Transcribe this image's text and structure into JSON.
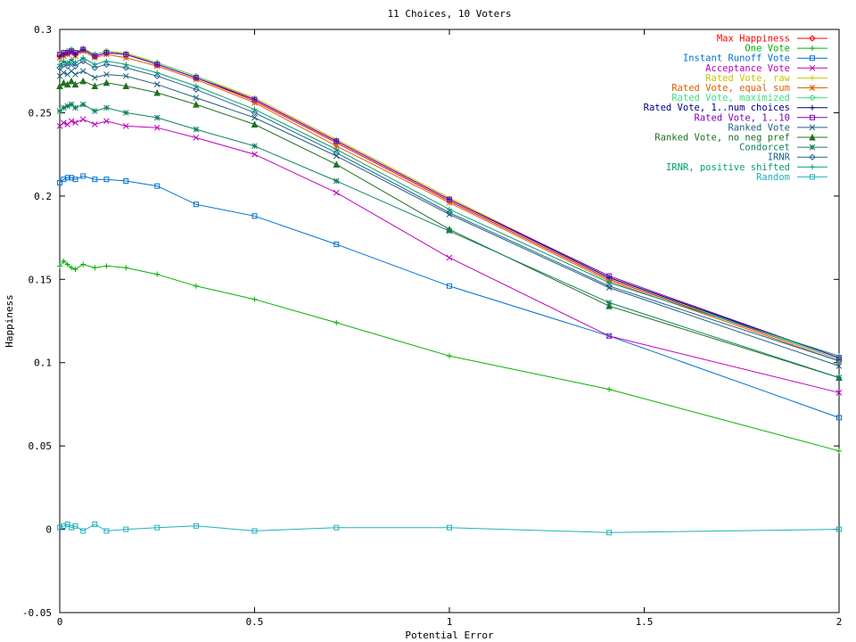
{
  "chart_data": {
    "type": "line",
    "title": "11 Choices, 10 Voters",
    "xlabel": "Potential Error",
    "ylabel": "Happiness",
    "xlim": [
      0,
      2
    ],
    "ylim": [
      -0.05,
      0.3
    ],
    "xticks": [
      0,
      0.5,
      1,
      1.5,
      2
    ],
    "xtick_labels": [
      "0",
      "0.5",
      "1",
      "1.5",
      "2"
    ],
    "yticks": [
      -0.05,
      0,
      0.05,
      0.1,
      0.15,
      0.2,
      0.25,
      0.3
    ],
    "ytick_labels": [
      "-0.05",
      "0",
      "0.05",
      "0.1",
      "0.15",
      "0.2",
      "0.25",
      "0.3"
    ],
    "grid": false,
    "legend_position": "top-right",
    "x": [
      0,
      0.01,
      0.02,
      0.03,
      0.04,
      0.06,
      0.09,
      0.12,
      0.17,
      0.25,
      0.35,
      0.5,
      0.71,
      1.0,
      1.41,
      2.0
    ],
    "series": [
      {
        "name": "Max Happiness",
        "color": "#ff0000",
        "marker": "diamond",
        "values": [
          0.284,
          0.285,
          0.286,
          0.287,
          0.285,
          0.288,
          0.284,
          0.286,
          0.285,
          0.279,
          0.271,
          0.257,
          0.232,
          0.197,
          0.15,
          0.102
        ]
      },
      {
        "name": "One Vote",
        "color": "#00b000",
        "marker": "plus",
        "values": [
          0.158,
          0.161,
          0.159,
          0.157,
          0.156,
          0.159,
          0.157,
          0.158,
          0.157,
          0.153,
          0.146,
          0.138,
          0.124,
          0.104,
          0.084,
          0.047
        ]
      },
      {
        "name": "Instant Runoff Vote",
        "color": "#0070d0",
        "marker": "square",
        "values": [
          0.208,
          0.21,
          0.211,
          0.211,
          0.21,
          0.212,
          0.21,
          0.21,
          0.209,
          0.206,
          0.195,
          0.188,
          0.171,
          0.146,
          0.116,
          0.067
        ]
      },
      {
        "name": "Acceptance Vote",
        "color": "#c000c0",
        "marker": "x",
        "values": [
          0.242,
          0.244,
          0.243,
          0.245,
          0.244,
          0.246,
          0.243,
          0.245,
          0.242,
          0.241,
          0.235,
          0.225,
          0.202,
          0.163,
          0.116,
          0.082
        ]
      },
      {
        "name": "Rated Vote, raw",
        "color": "#c8c800",
        "marker": "plus",
        "values": [
          0.285,
          0.286,
          0.286,
          0.288,
          0.286,
          0.289,
          0.285,
          0.287,
          0.286,
          0.28,
          0.272,
          0.259,
          0.234,
          0.199,
          0.151,
          0.103
        ]
      },
      {
        "name": "Rated Vote, equal sum",
        "color": "#e06000",
        "marker": "star",
        "values": [
          0.283,
          0.284,
          0.285,
          0.286,
          0.284,
          0.287,
          0.283,
          0.285,
          0.283,
          0.278,
          0.27,
          0.256,
          0.23,
          0.196,
          0.149,
          0.101
        ]
      },
      {
        "name": "Rated Vote, maximized",
        "color": "#40e080",
        "marker": "diamond",
        "values": [
          0.285,
          0.286,
          0.287,
          0.288,
          0.286,
          0.288,
          0.285,
          0.287,
          0.285,
          0.28,
          0.272,
          0.258,
          0.233,
          0.198,
          0.151,
          0.102
        ]
      },
      {
        "name": "Rated Vote, 1..num choices",
        "color": "#000080",
        "marker": "plus",
        "values": [
          0.284,
          0.285,
          0.286,
          0.287,
          0.285,
          0.288,
          0.284,
          0.286,
          0.285,
          0.279,
          0.271,
          0.258,
          0.233,
          0.198,
          0.151,
          0.103
        ]
      },
      {
        "name": "Rated Vote, 1..10",
        "color": "#8000c0",
        "marker": "square",
        "values": [
          0.285,
          0.286,
          0.286,
          0.287,
          0.286,
          0.288,
          0.284,
          0.286,
          0.285,
          0.279,
          0.271,
          0.258,
          0.233,
          0.198,
          0.152,
          0.103
        ]
      },
      {
        "name": "Ranked Vote",
        "color": "#206080",
        "marker": "x",
        "values": [
          0.272,
          0.274,
          0.273,
          0.275,
          0.273,
          0.275,
          0.271,
          0.273,
          0.272,
          0.267,
          0.259,
          0.247,
          0.224,
          0.189,
          0.145,
          0.098
        ]
      },
      {
        "name": "Ranked Vote, no neg pref",
        "color": "#207020",
        "marker": "triangle",
        "values": [
          0.266,
          0.268,
          0.267,
          0.269,
          0.267,
          0.269,
          0.266,
          0.268,
          0.266,
          0.262,
          0.255,
          0.243,
          0.219,
          0.18,
          0.134,
          0.091
        ]
      },
      {
        "name": "Condorcet",
        "color": "#108060",
        "marker": "star",
        "values": [
          0.251,
          0.253,
          0.254,
          0.255,
          0.253,
          0.255,
          0.251,
          0.253,
          0.25,
          0.247,
          0.24,
          0.23,
          0.209,
          0.179,
          0.136,
          0.091
        ]
      },
      {
        "name": "IRNR",
        "color": "#206090",
        "marker": "diamond",
        "values": [
          0.277,
          0.279,
          0.278,
          0.28,
          0.278,
          0.281,
          0.277,
          0.279,
          0.277,
          0.272,
          0.264,
          0.25,
          0.226,
          0.19,
          0.146,
          0.101
        ]
      },
      {
        "name": "IRNR, positive shifted",
        "color": "#00a070",
        "marker": "plus",
        "values": [
          0.279,
          0.281,
          0.28,
          0.282,
          0.28,
          0.283,
          0.279,
          0.281,
          0.279,
          0.274,
          0.266,
          0.252,
          0.228,
          0.192,
          0.148,
          0.104
        ]
      },
      {
        "name": "Random",
        "color": "#20b0c0",
        "marker": "square",
        "values": [
          0.001,
          0.002,
          0.003,
          0.001,
          0.002,
          -0.001,
          0.003,
          -0.001,
          0.0,
          0.001,
          0.002,
          -0.001,
          0.001,
          0.001,
          -0.002,
          0.0
        ]
      }
    ]
  }
}
